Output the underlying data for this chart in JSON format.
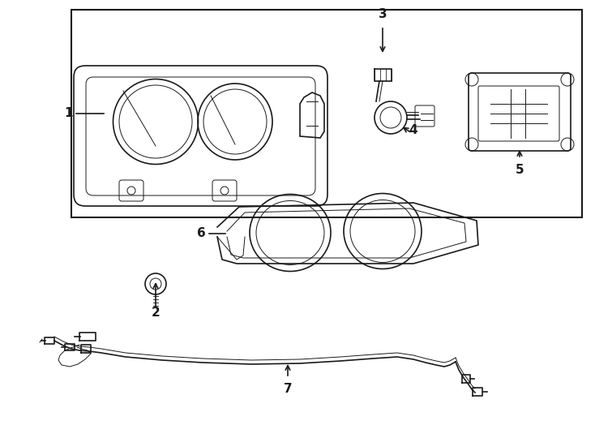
{
  "bg_color": "#ffffff",
  "line_color": "#1a1a1a",
  "line_width": 1.2,
  "thin_line": 0.7,
  "thick_line": 1.8,
  "label_color": "#000000",
  "label_fontsize": 11,
  "components": {
    "item1_label": "1",
    "item2_label": "2",
    "item3_label": "3",
    "item4_label": "4",
    "item5_label": "5",
    "item6_label": "6",
    "item7_label": "7"
  }
}
